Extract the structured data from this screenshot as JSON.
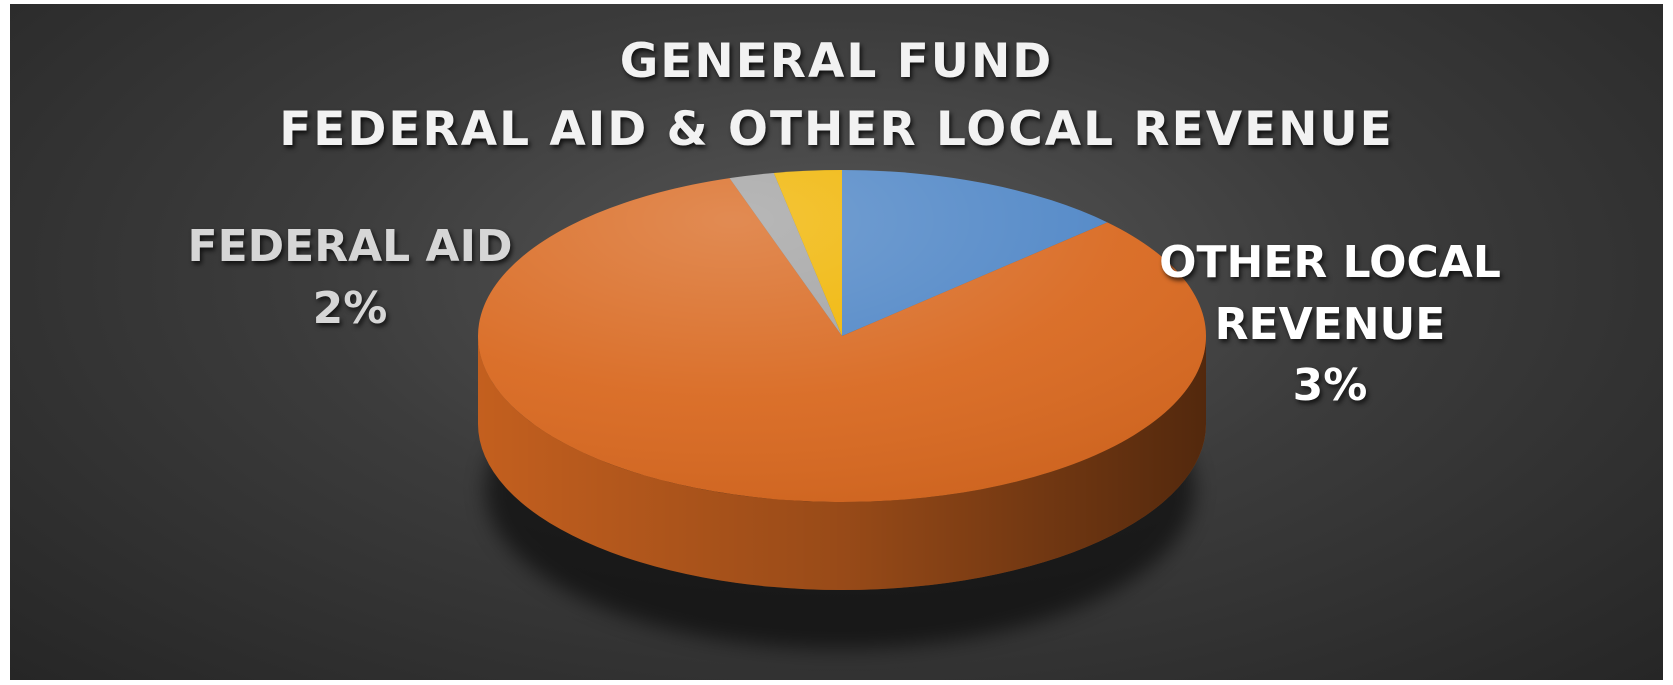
{
  "chart_data": {
    "type": "pie",
    "title_lines": [
      "GENERAL FUND",
      "FEDERAL AID & OTHER LOCAL REVENUE"
    ],
    "slices": [
      {
        "name": "",
        "value": 13,
        "color": "#4f86c6"
      },
      {
        "name": "",
        "value": 82,
        "color": "#d96a22"
      },
      {
        "name": "FEDERAL AID",
        "value": 2,
        "label": "2%",
        "color": "#a3a3a3"
      },
      {
        "name": "OTHER LOCAL REVENUE",
        "name_lines": [
          "OTHER LOCAL",
          "REVENUE"
        ],
        "value": 3,
        "label": "3%",
        "color": "#f0b400"
      }
    ],
    "start_angle_deg": 0,
    "direction": "clockwise",
    "style": "3d"
  }
}
